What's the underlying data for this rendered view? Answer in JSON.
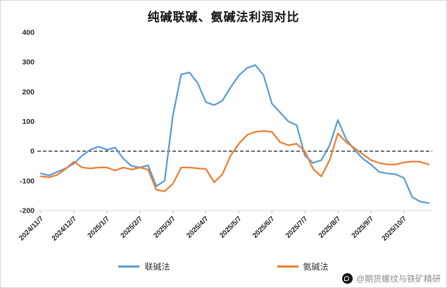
{
  "title": "纯碱联碱、氨碱法利润对比",
  "watermark": {
    "text": "@期货螺纹与铁矿精研"
  },
  "chart_data": {
    "type": "line",
    "title": "纯碱联碱、氨碱法利润对比",
    "xlabel": "",
    "ylabel": "",
    "ylim": [
      -200,
      400
    ],
    "y_ticks": [
      400,
      300,
      200,
      100,
      0,
      -100,
      -200
    ],
    "grid": false,
    "zero_line": "dashed-black",
    "legend_position": "bottom",
    "x_tick_labels": [
      "2024/11/7",
      "2024/12/7",
      "2025/1/7",
      "2025/2/7",
      "2025/3/7",
      "2025/4/7",
      "2025/5/7",
      "2025/6/7",
      "2025/7/7",
      "2025/8/7",
      "2025/9/7",
      "2025/10/7"
    ],
    "x_tick_indices": [
      0,
      4,
      8,
      12,
      16,
      20,
      24,
      28,
      32,
      36,
      40,
      44
    ],
    "n_points": 48,
    "series": [
      {
        "name": "联碱法",
        "color": "#5B9BD5",
        "values": [
          -75,
          -82,
          -70,
          -58,
          -42,
          -15,
          5,
          15,
          5,
          12,
          -25,
          -50,
          -55,
          -48,
          -118,
          -100,
          120,
          258,
          265,
          230,
          165,
          155,
          170,
          215,
          255,
          280,
          290,
          255,
          160,
          130,
          100,
          88,
          -15,
          -40,
          -30,
          20,
          105,
          40,
          5,
          -25,
          -45,
          -70,
          -75,
          -78,
          -90,
          -155,
          -170,
          -175
        ]
      },
      {
        "name": "氨碱法",
        "color": "#ED7D31",
        "values": [
          -85,
          -88,
          -80,
          -60,
          -35,
          -55,
          -58,
          -55,
          -55,
          -65,
          -55,
          -62,
          -55,
          -62,
          -130,
          -135,
          -110,
          -55,
          -55,
          -58,
          -60,
          -105,
          -78,
          -15,
          25,
          55,
          65,
          68,
          65,
          30,
          20,
          25,
          0,
          -60,
          -85,
          -30,
          60,
          30,
          10,
          -10,
          -30,
          -40,
          -45,
          -45,
          -38,
          -35,
          -36,
          -45
        ]
      }
    ]
  }
}
